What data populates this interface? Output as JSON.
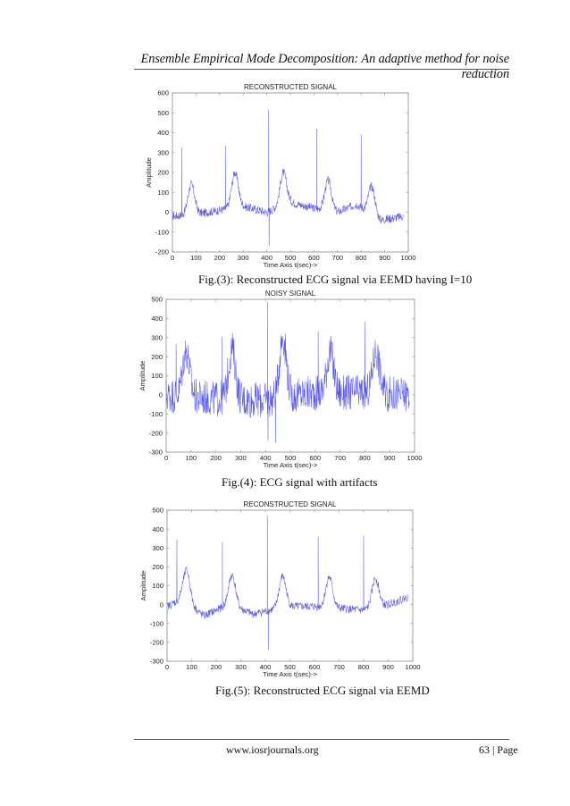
{
  "header": {
    "title": "Ensemble Empirical Mode Decomposition: An adaptive method for noise reduction"
  },
  "figures": [
    {
      "caption": "Fig.(3): Reconstructed ECG signal via EEMD having I=10"
    },
    {
      "caption": "Fig.(4): ECG signal with artifacts"
    },
    {
      "caption": "Fig.(5): Reconstructed ECG signal via EEMD"
    }
  ],
  "footer": {
    "url": "www.iosrjournals.org",
    "page": "63 | Page"
  },
  "colors": {
    "signal": "#3a3ae6",
    "axis": "#8a8a8a",
    "rule": "#555555"
  },
  "chart_data": [
    {
      "type": "line",
      "title": "RECONSTRUCTED SIGNAL",
      "xlabel": "Time Axis t(sec)->",
      "ylabel": "Amplitude",
      "xlim": [
        0,
        1000
      ],
      "ylim": [
        -200,
        600
      ],
      "xticks": [
        0,
        100,
        200,
        300,
        400,
        500,
        600,
        700,
        800,
        900,
        1000
      ],
      "yticks": [
        -200,
        -100,
        0,
        100,
        200,
        300,
        400,
        500,
        600
      ],
      "series": [
        {
          "name": "reconstructed",
          "color": "#3a3ae6",
          "r_peaks": [
            [
              40,
              325
            ],
            [
              225,
              335
            ],
            [
              408,
              515
            ],
            [
              612,
              420
            ],
            [
              800,
              390
            ]
          ],
          "s_troughs": [
            [
              410,
              -170
            ]
          ],
          "t_waves": [
            [
              80,
              140
            ],
            [
              265,
              200
            ],
            [
              470,
              200
            ],
            [
              660,
              160
            ],
            [
              845,
              130
            ]
          ],
          "baseline": [
            [
              0,
              -20
            ],
            [
              100,
              -10
            ],
            [
              200,
              10
            ],
            [
              300,
              30
            ],
            [
              400,
              0
            ],
            [
              500,
              50
            ],
            [
              600,
              20
            ],
            [
              700,
              0
            ],
            [
              780,
              40
            ],
            [
              880,
              -40
            ],
            [
              980,
              -20
            ]
          ],
          "noise_amp": 22,
          "x_end": 980
        }
      ]
    },
    {
      "type": "line",
      "title": "NOISY SIGNAL",
      "xlabel": "Time Axis t(sec)->",
      "ylabel": "Amplitude",
      "xlim": [
        0,
        1000
      ],
      "ylim": [
        -300,
        500
      ],
      "xticks": [
        0,
        100,
        200,
        300,
        400,
        500,
        600,
        700,
        800,
        900,
        1000
      ],
      "yticks": [
        -300,
        -200,
        -100,
        0,
        100,
        200,
        300,
        400,
        500
      ],
      "series": [
        {
          "name": "noisy",
          "color": "#3a3ae6",
          "r_peaks": [
            [
              40,
              265
            ],
            [
              225,
              305
            ],
            [
              408,
              485
            ],
            [
              612,
              330
            ],
            [
              800,
              385
            ]
          ],
          "s_troughs": [
            [
              410,
              -240
            ],
            [
              440,
              -250
            ]
          ],
          "t_waves": [
            [
              80,
              230
            ],
            [
              265,
              240
            ],
            [
              470,
              305
            ],
            [
              660,
              225
            ],
            [
              845,
              230
            ]
          ],
          "baseline": [
            [
              0,
              0
            ],
            [
              200,
              -20
            ],
            [
              400,
              -30
            ],
            [
              600,
              10
            ],
            [
              800,
              10
            ],
            [
              980,
              0
            ]
          ],
          "noise_amp": 95,
          "x_end": 980
        }
      ]
    },
    {
      "type": "line",
      "title": "RECONSTRUCTED SIGNAL",
      "xlabel": "Time Axis t(sec)->",
      "ylabel": "Amplitude",
      "xlim": [
        0,
        1000
      ],
      "ylim": [
        -300,
        500
      ],
      "xticks": [
        0,
        100,
        200,
        300,
        400,
        500,
        600,
        700,
        800,
        900,
        1000
      ],
      "yticks": [
        -300,
        -200,
        -100,
        0,
        100,
        200,
        300,
        400,
        500
      ],
      "series": [
        {
          "name": "reconstructed",
          "color": "#3a3ae6",
          "r_peaks": [
            [
              40,
              345
            ],
            [
              225,
              330
            ],
            [
              408,
              470
            ],
            [
              615,
              360
            ],
            [
              800,
              365
            ]
          ],
          "s_troughs": [
            [
              412,
              -240
            ]
          ],
          "t_waves": [
            [
              80,
              180
            ],
            [
              265,
              155
            ],
            [
              470,
              150
            ],
            [
              660,
              145
            ],
            [
              848,
              140
            ]
          ],
          "baseline": [
            [
              0,
              -10
            ],
            [
              60,
              30
            ],
            [
              150,
              -60
            ],
            [
              250,
              0
            ],
            [
              350,
              -50
            ],
            [
              420,
              -30
            ],
            [
              500,
              -10
            ],
            [
              600,
              -10
            ],
            [
              700,
              -20
            ],
            [
              800,
              -30
            ],
            [
              900,
              0
            ],
            [
              980,
              40
            ]
          ],
          "noise_amp": 22,
          "x_end": 980
        }
      ]
    }
  ]
}
